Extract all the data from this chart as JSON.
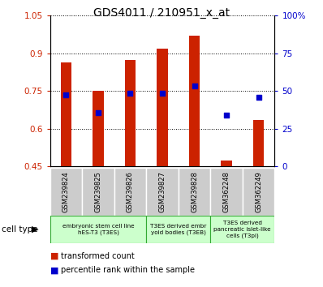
{
  "title": "GDS4011 / 210951_x_at",
  "samples": [
    "GSM239824",
    "GSM239825",
    "GSM239826",
    "GSM239827",
    "GSM239828",
    "GSM362248",
    "GSM362249"
  ],
  "transformed_count": [
    0.865,
    0.752,
    0.875,
    0.92,
    0.97,
    0.475,
    0.635
  ],
  "percentile_rank": [
    0.735,
    0.665,
    0.74,
    0.74,
    0.77,
    0.655,
    0.725
  ],
  "bar_bottom": 0.45,
  "ylim_left": [
    0.45,
    1.05
  ],
  "ylim_right": [
    0,
    100
  ],
  "yticks_left": [
    0.45,
    0.6,
    0.75,
    0.9,
    1.05
  ],
  "yticks_right": [
    0,
    25,
    50,
    75,
    100
  ],
  "ytick_labels_left": [
    "0.45",
    "0.6",
    "0.75",
    "0.9",
    "1.05"
  ],
  "ytick_labels_right": [
    "0",
    "25",
    "50",
    "75",
    "100%"
  ],
  "bar_color": "#cc2200",
  "marker_color": "#0000cc",
  "cell_type_groups": [
    {
      "label": "embryonic stem cell line\nhES-T3 (T3ES)",
      "start": 0,
      "end": 3,
      "color": "#ccffcc"
    },
    {
      "label": "T3ES derived embr\nyoid bodies (T3EB)",
      "start": 3,
      "end": 5,
      "color": "#ccffcc"
    },
    {
      "label": "T3ES derived\npancreatic islet-like\ncells (T3pi)",
      "start": 5,
      "end": 7,
      "color": "#ccffcc"
    }
  ],
  "legend_red_label": "transformed count",
  "legend_blue_label": "percentile rank within the sample",
  "cell_type_label": "cell type",
  "background_color": "#ffffff",
  "tick_label_color_left": "#cc2200",
  "tick_label_color_right": "#0000cc",
  "sample_box_color": "#cccccc",
  "group_border_color": "#33aa33",
  "n_samples": 7,
  "bar_width": 0.35
}
